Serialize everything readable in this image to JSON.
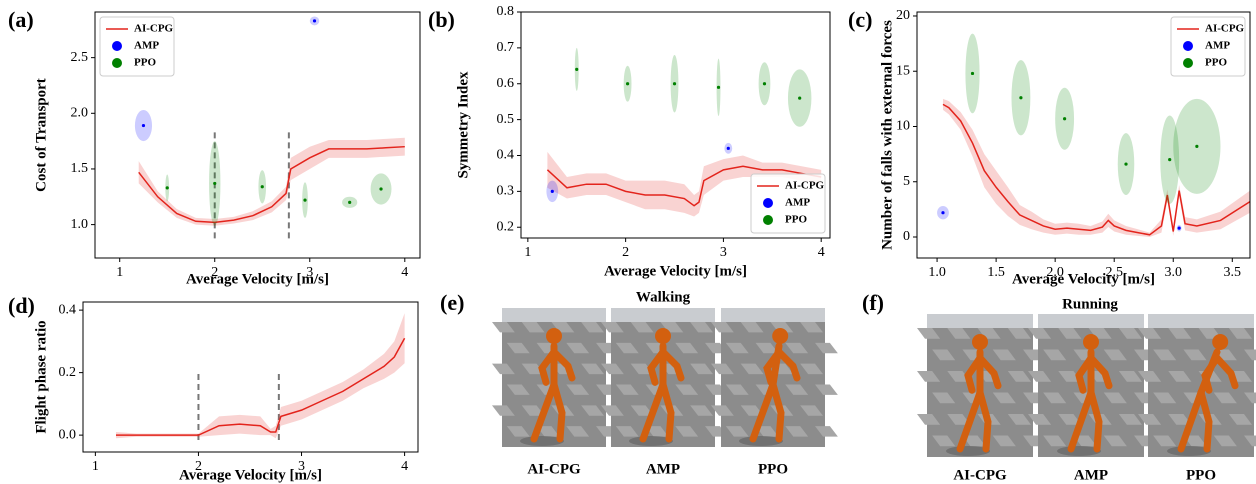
{
  "chart_data": [
    {
      "type": "line",
      "label": "(a)",
      "xlabel": "Average Velocity [m/s]",
      "ylabel": "Cost of Transport",
      "xlim": [
        0.74,
        4.16
      ],
      "ylim": [
        0.7,
        2.91
      ],
      "xticks": [
        1,
        2,
        3,
        4
      ],
      "yticks": [
        {
          "value": 1.0,
          "label": "1.0"
        },
        {
          "value": 1.5,
          "label": "1.5"
        },
        {
          "value": 2.0,
          "label": "2.0"
        },
        {
          "value": 2.5,
          "label": "2.5"
        }
      ],
      "legend": "upper left",
      "vlines": [
        2.0,
        2.78
      ],
      "series": [
        {
          "name": "AI-CPG",
          "type": "line",
          "color": "#e3241c",
          "x": [
            1.2,
            1.4,
            1.6,
            1.8,
            2.0,
            2.2,
            2.4,
            2.6,
            2.75,
            2.8,
            3.0,
            3.2,
            3.4,
            3.6,
            3.8,
            4.0
          ],
          "values": [
            1.47,
            1.25,
            1.1,
            1.03,
            1.02,
            1.04,
            1.08,
            1.16,
            1.28,
            1.5,
            1.6,
            1.68,
            1.68,
            1.68,
            1.69,
            1.7
          ],
          "error": [
            0.1,
            0.05,
            0.04,
            0.03,
            0.03,
            0.03,
            0.04,
            0.05,
            0.06,
            0.1,
            0.1,
            0.08,
            0.08,
            0.08,
            0.08,
            0.08
          ]
        },
        {
          "name": "AMP",
          "type": "ellipse",
          "color": "#0000ff",
          "x": [
            1.25,
            3.05
          ],
          "values": [
            1.89,
            2.83
          ],
          "x_err": [
            0.09,
            0.05
          ],
          "y_err": [
            0.14,
            0.04
          ]
        },
        {
          "name": "PPO",
          "type": "ellipse",
          "color": "#008000",
          "x": [
            1.5,
            2.0,
            2.5,
            2.95,
            3.42,
            3.75
          ],
          "values": [
            1.33,
            1.37,
            1.34,
            1.22,
            1.2,
            1.32
          ],
          "x_err": [
            0.02,
            0.06,
            0.04,
            0.03,
            0.08,
            0.11
          ],
          "y_err": [
            0.12,
            0.38,
            0.15,
            0.16,
            0.05,
            0.14
          ]
        }
      ]
    },
    {
      "type": "line",
      "label": "(b)",
      "xlabel": "Average Velocity [m/s]",
      "ylabel": "Symmetry Index",
      "xlim": [
        0.93,
        4.09
      ],
      "ylim": [
        0.17,
        0.8
      ],
      "xticks": [
        1,
        2,
        3,
        4
      ],
      "yticks": [
        0.2,
        0.3,
        0.4,
        0.5,
        0.6,
        0.7,
        0.8
      ],
      "legend": "lower right",
      "series": [
        {
          "name": "AI-CPG",
          "type": "line",
          "color": "#e3241c",
          "x": [
            1.2,
            1.4,
            1.6,
            1.8,
            2.0,
            2.2,
            2.4,
            2.6,
            2.7,
            2.75,
            2.8,
            3.0,
            3.2,
            3.4,
            3.6,
            3.8,
            4.0
          ],
          "values": [
            0.36,
            0.31,
            0.32,
            0.32,
            0.3,
            0.29,
            0.29,
            0.28,
            0.26,
            0.27,
            0.33,
            0.36,
            0.37,
            0.36,
            0.36,
            0.35,
            0.34
          ],
          "error": [
            0.05,
            0.03,
            0.03,
            0.03,
            0.03,
            0.04,
            0.04,
            0.04,
            0.03,
            0.03,
            0.04,
            0.03,
            0.03,
            0.02,
            0.02,
            0.02,
            0.02
          ]
        },
        {
          "name": "AMP",
          "type": "ellipse",
          "color": "#0000ff",
          "x": [
            1.25,
            3.05
          ],
          "values": [
            0.3,
            0.42
          ],
          "x_err": [
            0.06,
            0.04
          ],
          "y_err": [
            0.03,
            0.015
          ]
        },
        {
          "name": "PPO",
          "type": "ellipse",
          "color": "#008000",
          "x": [
            1.5,
            2.02,
            2.5,
            2.95,
            3.42,
            3.78
          ],
          "values": [
            0.64,
            0.6,
            0.6,
            0.59,
            0.6,
            0.56
          ],
          "x_err": [
            0.02,
            0.04,
            0.04,
            0.02,
            0.06,
            0.12
          ],
          "y_err": [
            0.06,
            0.05,
            0.08,
            0.08,
            0.06,
            0.08
          ]
        }
      ]
    },
    {
      "type": "line",
      "label": "(c)",
      "xlabel": "Average Velocity [m/s]",
      "ylabel": "Number of falls with external forces",
      "xlim": [
        0.83,
        3.65
      ],
      "ylim": [
        -1.9,
        20.36
      ],
      "xticks": [
        {
          "value": 1.0,
          "label": "1.0"
        },
        {
          "value": 1.5,
          "label": "1.5"
        },
        {
          "value": 2.0,
          "label": "2.0"
        },
        {
          "value": 2.5,
          "label": "2.5"
        },
        {
          "value": 3.0,
          "label": "3.0"
        },
        {
          "value": 3.5,
          "label": "3.5"
        }
      ],
      "yticks": [
        0,
        5,
        10,
        15,
        20
      ],
      "legend": "upper right",
      "series": [
        {
          "name": "AI-CPG",
          "type": "line",
          "color": "#e3241c",
          "x": [
            1.05,
            1.1,
            1.2,
            1.3,
            1.4,
            1.5,
            1.6,
            1.7,
            1.8,
            1.9,
            2.0,
            2.1,
            2.2,
            2.3,
            2.4,
            2.45,
            2.5,
            2.6,
            2.7,
            2.8,
            2.9,
            2.95,
            3.0,
            3.05,
            3.1,
            3.2,
            3.4,
            3.65
          ],
          "values": [
            12.0,
            11.7,
            10.5,
            8.5,
            6.0,
            4.5,
            3.2,
            2.0,
            1.5,
            1.0,
            0.7,
            0.8,
            0.7,
            0.6,
            0.9,
            1.5,
            1.0,
            0.6,
            0.4,
            0.2,
            1.0,
            3.8,
            0.5,
            4.2,
            1.2,
            1.0,
            1.5,
            3.2
          ],
          "error": [
            0.5,
            0.6,
            0.8,
            1.2,
            1.5,
            1.5,
            1.3,
            0.9,
            0.8,
            0.6,
            0.5,
            0.5,
            0.5,
            0.4,
            0.5,
            0.6,
            0.5,
            0.4,
            0.3,
            0.2,
            0.6,
            0.5,
            0.4,
            0.5,
            0.6,
            0.6,
            0.8,
            1.0
          ]
        },
        {
          "name": "AMP",
          "type": "ellipse",
          "color": "#0000ff",
          "x": [
            1.05,
            3.05
          ],
          "values": [
            2.2,
            0.8
          ],
          "x_err": [
            0.05,
            0.02
          ],
          "y_err": [
            0.6,
            0.3
          ]
        },
        {
          "name": "PPO",
          "type": "ellipse",
          "color": "#008000",
          "x": [
            1.3,
            1.71,
            2.08,
            2.6,
            2.97,
            3.2
          ],
          "values": [
            14.8,
            12.6,
            10.7,
            6.6,
            7.0,
            8.2
          ],
          "x_err": [
            0.06,
            0.08,
            0.08,
            0.07,
            0.08,
            0.2
          ],
          "y_err": [
            3.6,
            3.4,
            2.8,
            2.8,
            4.0,
            4.3
          ]
        }
      ]
    },
    {
      "type": "line",
      "label": "(d)",
      "xlabel": "Average Velocity [m/s]",
      "ylabel": "Flight phase ratio",
      "xlim": [
        0.88,
        4.13
      ],
      "ylim": [
        -0.054,
        0.426
      ],
      "xticks": [
        1,
        2,
        3,
        4
      ],
      "yticks": [
        {
          "value": 0.0,
          "label": "0.0"
        },
        {
          "value": 0.2,
          "label": "0.2"
        },
        {
          "value": 0.4,
          "label": "0.4"
        }
      ],
      "vlines": [
        2.0,
        2.78
      ],
      "series": [
        {
          "name": "AI-CPG",
          "type": "line",
          "color": "#e3241c",
          "x": [
            1.2,
            1.4,
            1.6,
            1.8,
            2.0,
            2.2,
            2.4,
            2.6,
            2.7,
            2.75,
            2.8,
            3.0,
            3.2,
            3.4,
            3.6,
            3.8,
            3.9,
            4.0
          ],
          "values": [
            0.0,
            0.0,
            0.0,
            0.0,
            0.0,
            0.03,
            0.035,
            0.03,
            0.01,
            0.01,
            0.06,
            0.08,
            0.11,
            0.14,
            0.18,
            0.22,
            0.25,
            0.31
          ],
          "error": [
            0.01,
            0.005,
            0.005,
            0.005,
            0.005,
            0.03,
            0.03,
            0.03,
            0.01,
            0.02,
            0.03,
            0.03,
            0.03,
            0.03,
            0.03,
            0.04,
            0.05,
            0.08
          ]
        }
      ]
    }
  ],
  "images": [
    {
      "label": "(e)",
      "title": "Walking",
      "captions": [
        "AI-CPG",
        "AMP",
        "PPO"
      ]
    },
    {
      "label": "(f)",
      "title": "Running",
      "captions": [
        "AI-CPG",
        "AMP",
        "PPO"
      ]
    }
  ]
}
